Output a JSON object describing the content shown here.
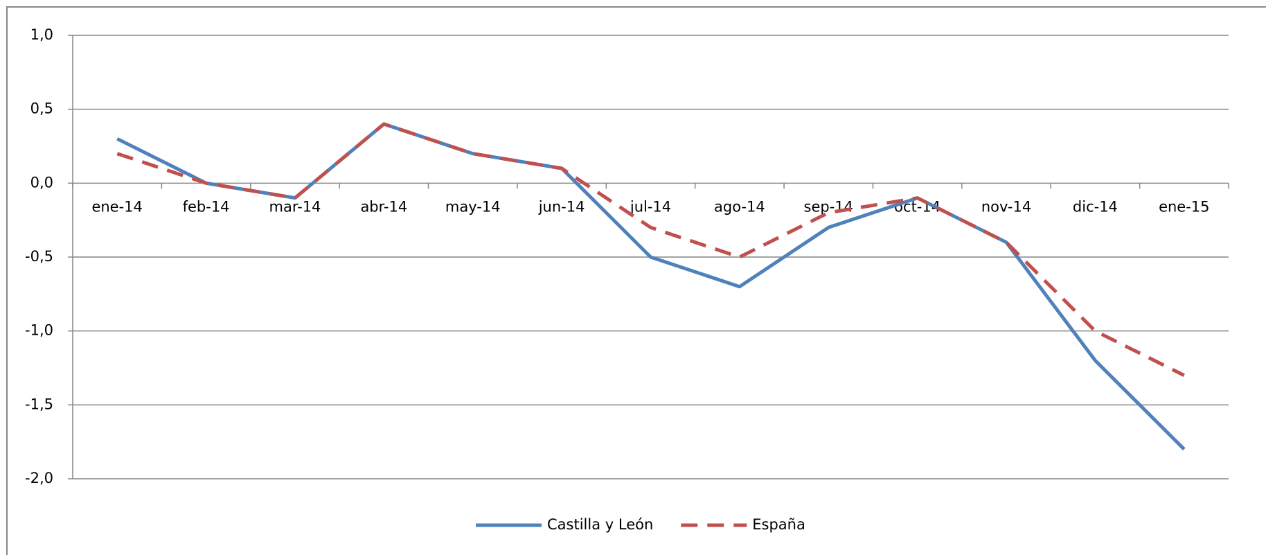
{
  "chart_data": {
    "type": "line",
    "categories": [
      "ene-14",
      "feb-14",
      "mar-14",
      "abr-14",
      "may-14",
      "jun-14",
      "jul-14",
      "ago-14",
      "sep-14",
      "oct-14",
      "nov-14",
      "dic-14",
      "ene-15"
    ],
    "series": [
      {
        "name": "Castilla y León",
        "color": "#4f81bd",
        "dash": false,
        "values": [
          0.3,
          0.0,
          -0.1,
          0.4,
          0.2,
          0.1,
          -0.5,
          -0.7,
          -0.3,
          -0.1,
          -0.4,
          -1.2,
          -1.8
        ]
      },
      {
        "name": "España",
        "color": "#c0504d",
        "dash": true,
        "values": [
          0.2,
          0.0,
          -0.1,
          0.4,
          0.2,
          0.1,
          -0.3,
          -0.5,
          -0.2,
          -0.1,
          -0.4,
          -1.0,
          -1.3
        ]
      }
    ],
    "ylim": [
      -2,
      1
    ],
    "yticks": [
      {
        "value": 1,
        "label": "1,0"
      },
      {
        "value": 0.5,
        "label": "0,5"
      },
      {
        "value": 0,
        "label": "0,0"
      },
      {
        "value": -0.5,
        "label": "-0,5"
      },
      {
        "value": -1,
        "label": "-1,0"
      },
      {
        "value": -1.5,
        "label": "-1,5"
      },
      {
        "value": -2,
        "label": "-2,0"
      }
    ],
    "grid": true,
    "legend": "bottom"
  }
}
